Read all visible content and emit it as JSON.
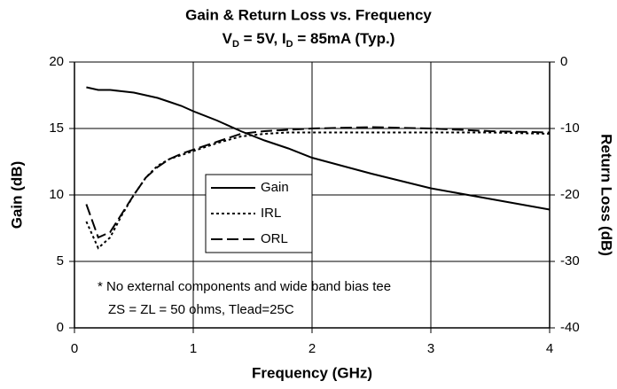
{
  "chart_data": {
    "type": "line",
    "title": "Gain & Return Loss vs. Frequency",
    "subtitle": [
      "V",
      "D",
      " = 5V, I",
      "D",
      " = 85mA (Typ.)"
    ],
    "xlabel": "Frequency (GHz)",
    "ylabel": "Gain (dB)",
    "y2label": "Return Loss (dB)",
    "annotation": [
      "* No external components and wide band bias tee",
      "ZS = ZL = 50 ohms, Tlead=25C"
    ],
    "x": [
      0.1,
      0.2,
      0.3,
      0.4,
      0.5,
      0.6,
      0.7,
      0.8,
      0.9,
      1.0,
      1.2,
      1.4,
      1.6,
      1.8,
      2.0,
      2.5,
      3.0,
      3.5,
      4.0
    ],
    "series": [
      {
        "name": "Gain",
        "color": "#000000",
        "dash": "solid",
        "values": [
          18.1,
          17.9,
          17.9,
          17.8,
          17.7,
          17.5,
          17.3,
          17.0,
          16.7,
          16.3,
          15.6,
          14.8,
          14.1,
          13.5,
          12.8,
          11.6,
          10.5,
          9.7,
          8.9
        ]
      },
      {
        "name": "IRL",
        "color": "#000000",
        "dash": "dotted",
        "axis": "y2",
        "values": [
          -24,
          -28,
          -26.4,
          -23,
          -20,
          -17.4,
          -15.6,
          -14.6,
          -14,
          -13.4,
          -12.2,
          -11.2,
          -10.8,
          -10.6,
          -10.6,
          -10.6,
          -10.6,
          -10.6,
          -10.8
        ]
      },
      {
        "name": "ORL",
        "color": "#000000",
        "dash": "dashed",
        "axis": "y2",
        "values": [
          -21.4,
          -26.4,
          -25.6,
          -22.8,
          -20,
          -17.4,
          -15.8,
          -14.6,
          -13.8,
          -13.2,
          -12,
          -10.8,
          -10.4,
          -10.2,
          -10,
          -9.8,
          -10,
          -10.4,
          -10.6
        ]
      }
    ],
    "xlim": [
      0,
      4
    ],
    "xticks": [
      0,
      1,
      2,
      3,
      4
    ],
    "ylim": [
      0,
      20
    ],
    "yticks": [
      0,
      5,
      10,
      15,
      20
    ],
    "y2lim": [
      -40,
      0
    ],
    "y2ticks": [
      -40,
      -30,
      -20,
      -10,
      0
    ],
    "grid": true
  }
}
